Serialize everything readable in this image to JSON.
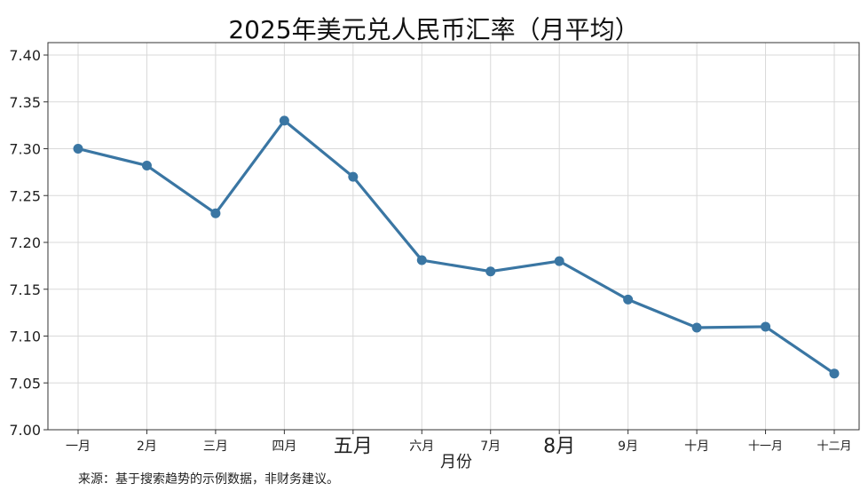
{
  "chart_data": {
    "type": "line",
    "title": "2025年美元兑人民币汇率（月平均）",
    "xlabel": "月份",
    "ylabel": "",
    "categories": [
      "一月",
      "2月",
      "三月",
      "四月",
      "五月",
      "六月",
      "7月",
      "8月",
      "9月",
      "十月",
      "十一月",
      "十二月"
    ],
    "series": [
      {
        "values": [
          7.3,
          7.282,
          7.231,
          7.33,
          7.27,
          7.181,
          7.169,
          7.18,
          7.139,
          7.109,
          7.11,
          7.06
        ]
      }
    ],
    "ylim": [
      7.0,
      7.42
    ],
    "yticks": [
      "7.00",
      "7.05",
      "7.10",
      "7.15",
      "7.20",
      "7.25",
      "7.30",
      "7.35",
      "7.40"
    ],
    "grid": true,
    "line_color": "#3a76a3",
    "grid_color": "#d9d9d9"
  },
  "footer": {
    "source": "来源：基于搜索趋势的示例数据，非财务建议。"
  }
}
